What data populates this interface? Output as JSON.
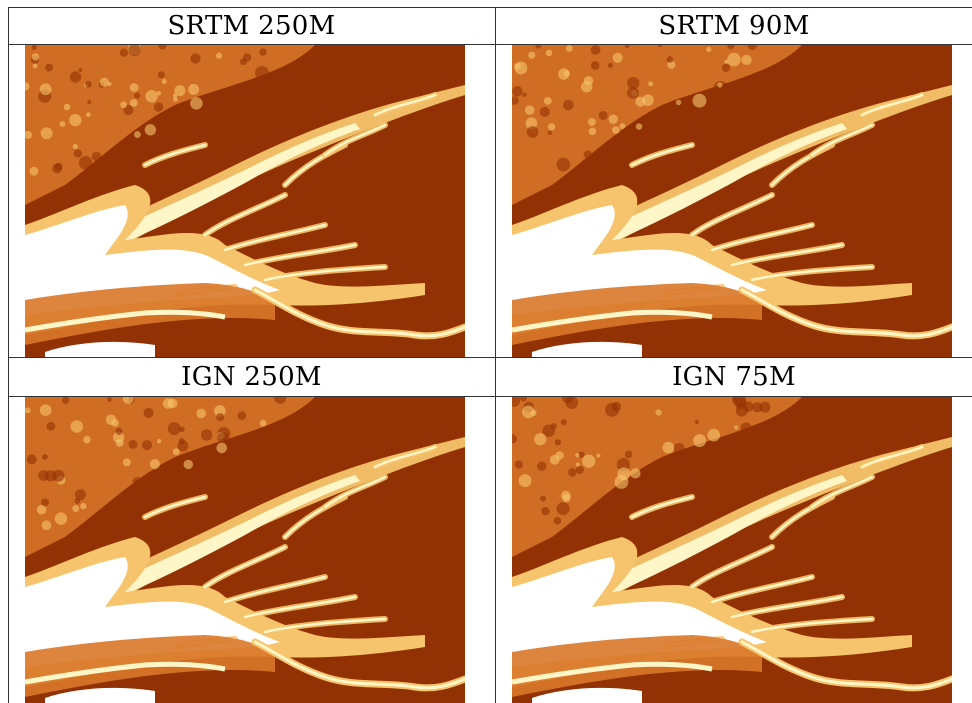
{
  "panels": [
    {
      "id": "srtm-250",
      "title": "SRTM 250M"
    },
    {
      "id": "srtm-90",
      "title": "SRTM 90M"
    },
    {
      "id": "ign-250",
      "title": "IGN 250M"
    },
    {
      "id": "ign-75",
      "title": "IGN 75M"
    }
  ],
  "colors": {
    "low": "#ffffff",
    "low_mid": "#fff6c8",
    "mid": "#f6c46c",
    "mid_high": "#d9782a",
    "high": "#923204",
    "border": "#333333"
  }
}
